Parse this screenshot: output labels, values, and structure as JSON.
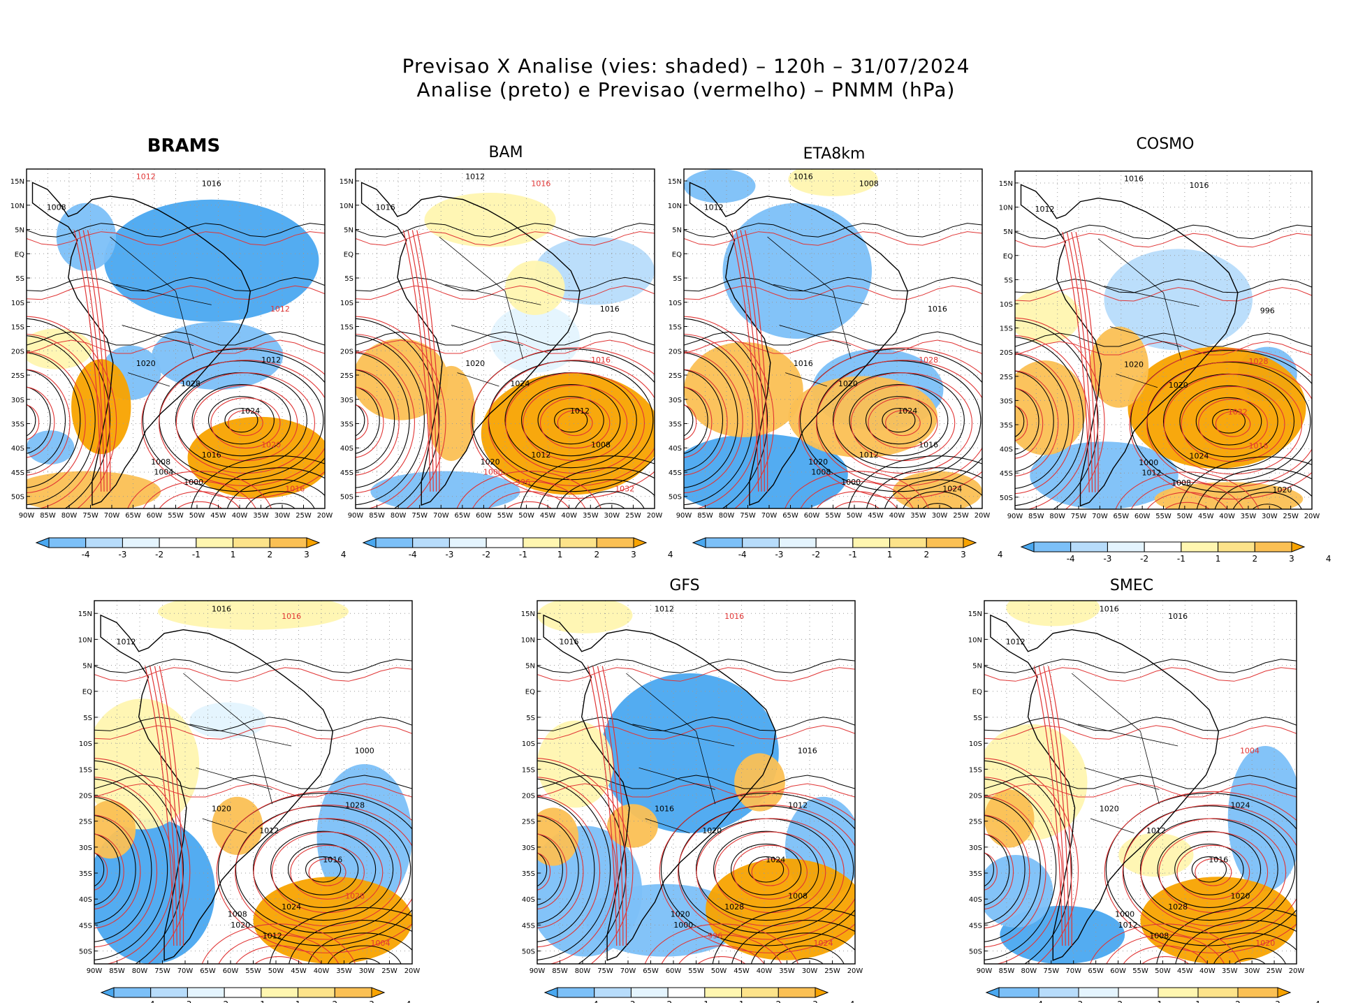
{
  "figure": {
    "title_line1": "Previsao X Analise (vies: shaded) – 120h – 31/07/2024",
    "title_line2": "Analise (preto) e Previsao (vermelho) – PNMM (hPa)"
  },
  "lat_labels": [
    "15N",
    "10N",
    "5N",
    "EQ",
    "5S",
    "10S",
    "15S",
    "20S",
    "25S",
    "30S",
    "35S",
    "40S",
    "45S",
    "50S"
  ],
  "lon_labels": [
    "90W",
    "85W",
    "80W",
    "75W",
    "70W",
    "65W",
    "60W",
    "55W",
    "50W",
    "45W",
    "40W",
    "35W",
    "30W",
    "25W",
    "20W"
  ],
  "colorbar": {
    "labels": [
      "-4",
      "-3",
      "-2",
      "-1",
      "1",
      "2",
      "3",
      "4"
    ],
    "colors": [
      "#4aa8f0",
      "#7cc0f8",
      "#b7dcfb",
      "#e4f4fe",
      "#ffffff",
      "#fff6b0",
      "#fde38a",
      "#fbc054",
      "#f8a300"
    ]
  },
  "colors": {
    "analysis": "#000000",
    "forecast": "#e03434"
  },
  "panels": [
    {
      "id": "brams",
      "title": "BRAMS",
      "labels": [
        [
          "1008",
          "black"
        ],
        [
          "1012",
          "red"
        ],
        [
          "1016",
          "black"
        ],
        [
          "1020",
          "black"
        ],
        [
          "1028",
          "black"
        ],
        [
          "1024",
          "black"
        ],
        [
          "1012",
          "black"
        ],
        [
          "1016",
          "black"
        ],
        [
          "1020",
          "red"
        ],
        [
          "1004",
          "black"
        ],
        [
          "1000",
          "black"
        ],
        [
          "1008",
          "black"
        ],
        [
          "1012",
          "red"
        ],
        [
          "1016",
          "red"
        ]
      ]
    },
    {
      "id": "bam",
      "title": "BAM",
      "labels": [
        [
          "1016",
          "black"
        ],
        [
          "1012",
          "black"
        ],
        [
          "1016",
          "red"
        ],
        [
          "1020",
          "black"
        ],
        [
          "1024",
          "black"
        ],
        [
          "1012",
          "black"
        ],
        [
          "1016",
          "red"
        ],
        [
          "1012",
          "black"
        ],
        [
          "1008",
          "black"
        ],
        [
          "1000",
          "red"
        ],
        [
          "996",
          "red"
        ],
        [
          "1020",
          "black"
        ],
        [
          "1016",
          "black"
        ],
        [
          "1032",
          "red"
        ]
      ]
    },
    {
      "id": "eta8km",
      "title": "ETA8km",
      "labels": [
        [
          "1012",
          "black"
        ],
        [
          "1016",
          "black"
        ],
        [
          "1008",
          "black"
        ],
        [
          "1016",
          "black"
        ],
        [
          "1020",
          "black"
        ],
        [
          "1024",
          "black"
        ],
        [
          "1028",
          "red"
        ],
        [
          "1012",
          "black"
        ],
        [
          "1016",
          "black"
        ],
        [
          "1008",
          "black"
        ],
        [
          "1000",
          "black"
        ],
        [
          "1020",
          "black"
        ],
        [
          "1016",
          "black"
        ],
        [
          "1024",
          "black"
        ]
      ]
    },
    {
      "id": "cosmo",
      "title": "COSMO",
      "labels": [
        [
          "1012",
          "black"
        ],
        [
          "1016",
          "black"
        ],
        [
          "1016",
          "black"
        ],
        [
          "1020",
          "black"
        ],
        [
          "1020",
          "black"
        ],
        [
          "1032",
          "red"
        ],
        [
          "1028",
          "red"
        ],
        [
          "1024",
          "black"
        ],
        [
          "1016",
          "red"
        ],
        [
          "1012",
          "black"
        ],
        [
          "1008",
          "black"
        ],
        [
          "1000",
          "black"
        ],
        [
          "996",
          "black"
        ],
        [
          "1020",
          "black"
        ]
      ]
    },
    {
      "id": "untitled",
      "title": "",
      "labels": [
        [
          "1012",
          "black"
        ],
        [
          "1016",
          "black"
        ],
        [
          "1016",
          "red"
        ],
        [
          "1020",
          "black"
        ],
        [
          "1012",
          "black"
        ],
        [
          "1016",
          "black"
        ],
        [
          "1028",
          "black"
        ],
        [
          "1024",
          "black"
        ],
        [
          "1028",
          "red"
        ],
        [
          "1020",
          "black"
        ],
        [
          "1012",
          "black"
        ],
        [
          "1008",
          "black"
        ],
        [
          "1000",
          "black"
        ],
        [
          "1004",
          "red"
        ]
      ]
    },
    {
      "id": "gfs",
      "title": "GFS",
      "labels": [
        [
          "1016",
          "black"
        ],
        [
          "1012",
          "black"
        ],
        [
          "1016",
          "red"
        ],
        [
          "1016",
          "black"
        ],
        [
          "1020",
          "black"
        ],
        [
          "1024",
          "black"
        ],
        [
          "1012",
          "black"
        ],
        [
          "1028",
          "black"
        ],
        [
          "1008",
          "black"
        ],
        [
          "1000",
          "black"
        ],
        [
          "996",
          "red"
        ],
        [
          "1020",
          "black"
        ],
        [
          "1016",
          "black"
        ],
        [
          "1024",
          "red"
        ]
      ]
    },
    {
      "id": "smec",
      "title": "SMEC",
      "labels": [
        [
          "1012",
          "black"
        ],
        [
          "1016",
          "black"
        ],
        [
          "1016",
          "black"
        ],
        [
          "1020",
          "black"
        ],
        [
          "1012",
          "black"
        ],
        [
          "1016",
          "black"
        ],
        [
          "1024",
          "black"
        ],
        [
          "1028",
          "black"
        ],
        [
          "1020",
          "black"
        ],
        [
          "1012",
          "black"
        ],
        [
          "1008",
          "black"
        ],
        [
          "1000",
          "black"
        ],
        [
          "1004",
          "red"
        ],
        [
          "1020",
          "red"
        ]
      ]
    }
  ]
}
